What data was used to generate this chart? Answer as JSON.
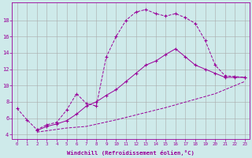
{
  "xlabel": "Windchill (Refroidissement éolien,°C)",
  "line_color": "#990099",
  "bg_color": "#ceeaea",
  "grid_color": "#aaaaaa",
  "line1_x": [
    0,
    1,
    2,
    3,
    4,
    5,
    6,
    7,
    8,
    9,
    10,
    11,
    12,
    13,
    14,
    15,
    16,
    17,
    18,
    19,
    20,
    21,
    22,
    23
  ],
  "line1_y": [
    7.2,
    5.8,
    4.6,
    5.2,
    5.5,
    7.0,
    9.0,
    7.8,
    7.5,
    13.5,
    16.0,
    18.0,
    19.0,
    19.3,
    18.8,
    18.5,
    18.8,
    18.3,
    17.6,
    15.5,
    12.5,
    11.2,
    11.1,
    11.0
  ],
  "line2_x": [
    2,
    3,
    4,
    5,
    6,
    7,
    8,
    9,
    10,
    11,
    12,
    13,
    14,
    15,
    16,
    17,
    18,
    19,
    20,
    21,
    22,
    23
  ],
  "line2_y": [
    4.5,
    5.0,
    5.3,
    5.7,
    6.5,
    7.5,
    8.0,
    8.8,
    9.5,
    10.5,
    11.5,
    12.5,
    13.0,
    13.8,
    14.5,
    13.5,
    12.5,
    12.0,
    11.5,
    11.0,
    11.0,
    11.0
  ],
  "line3_x": [
    2,
    5,
    7,
    10,
    15,
    20,
    23
  ],
  "line3_y": [
    4.3,
    4.8,
    5.0,
    5.8,
    7.3,
    9.0,
    10.5
  ],
  "xlim": [
    -0.5,
    23.5
  ],
  "ylim": [
    3.5,
    20.2
  ],
  "yticks": [
    4,
    6,
    8,
    10,
    12,
    14,
    16,
    18
  ],
  "xticks": [
    0,
    1,
    2,
    3,
    4,
    5,
    6,
    7,
    8,
    9,
    10,
    11,
    12,
    13,
    14,
    15,
    16,
    17,
    18,
    19,
    20,
    21,
    22,
    23
  ]
}
